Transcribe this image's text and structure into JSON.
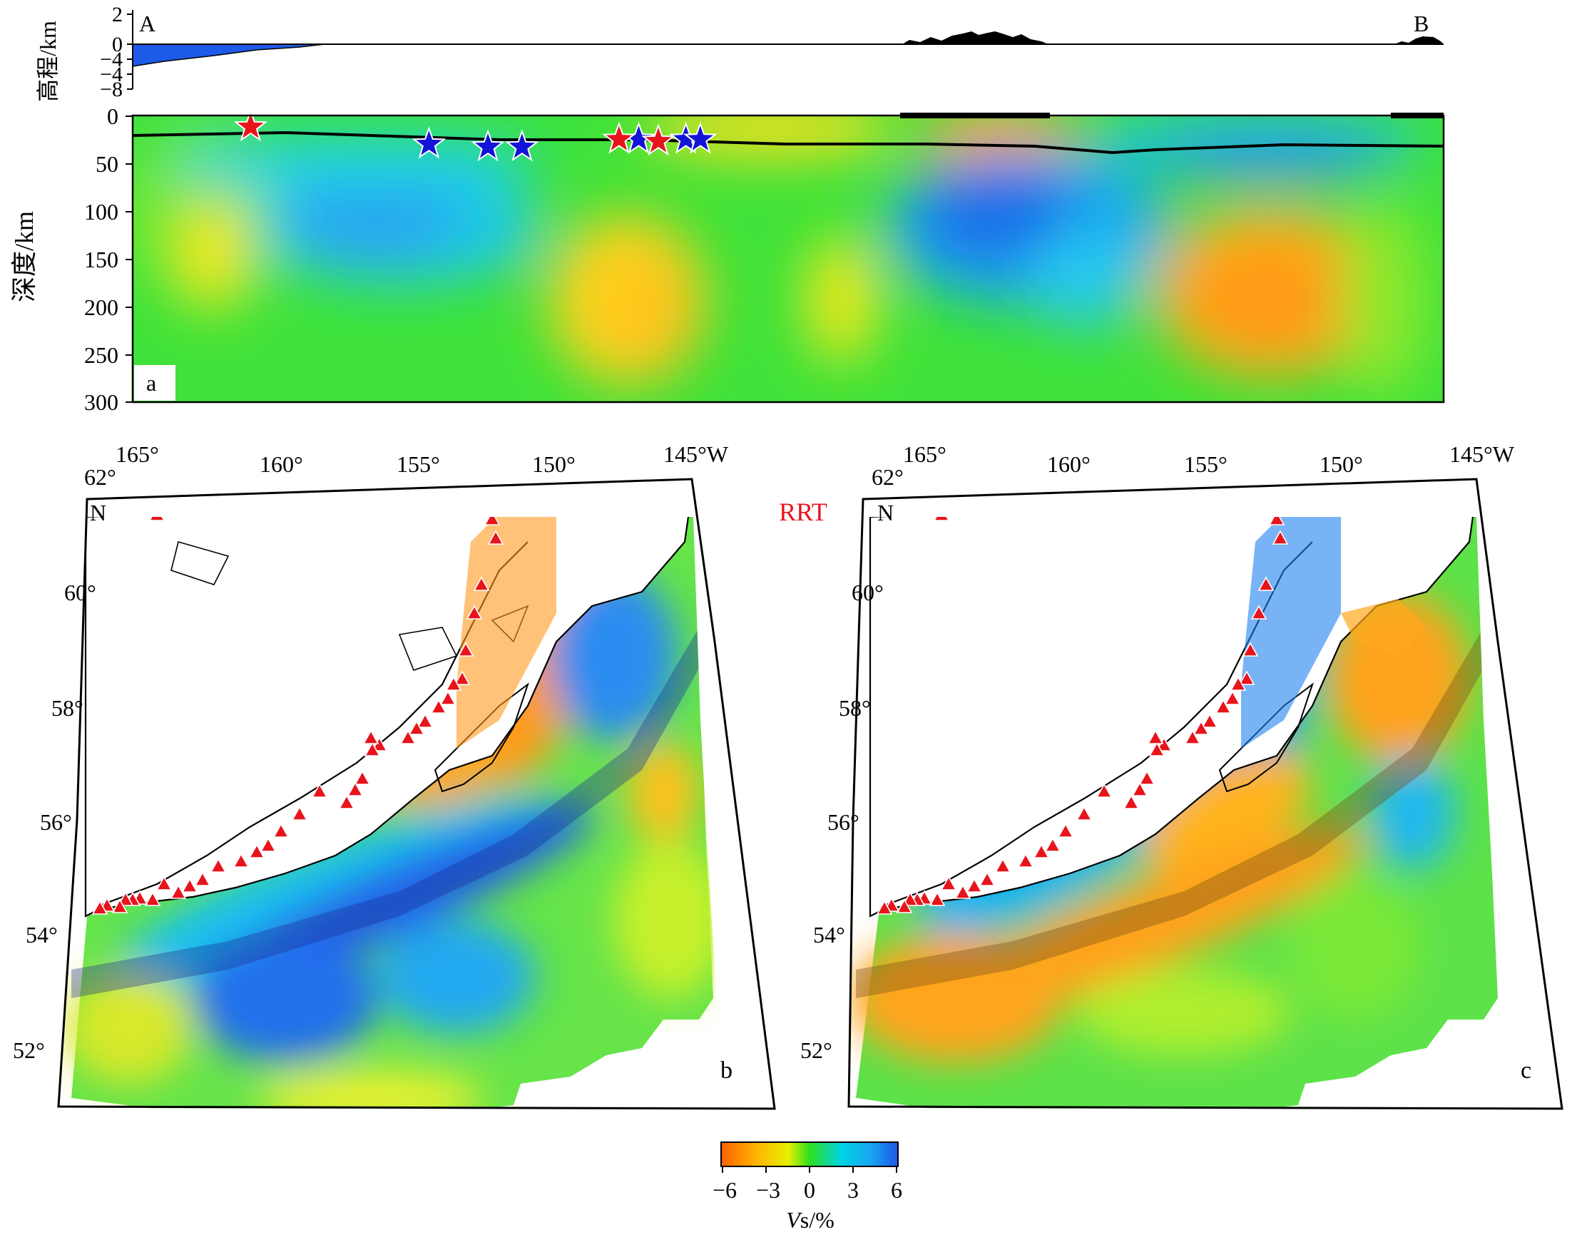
{
  "profile": {
    "elevation": {
      "ylabel": "高程/km",
      "ticks": [
        "2",
        "0",
        "−4",
        "−4",
        "−8"
      ],
      "point_a": "A",
      "point_b": "B"
    },
    "section": {
      "ylabel": "深度/km",
      "ticks": [
        "0",
        "50",
        "100",
        "150",
        "200",
        "250",
        "300"
      ],
      "panel_label": "a",
      "red_stars": [
        [
          0.09,
          12
        ],
        [
          0.371,
          25
        ],
        [
          0.401,
          27
        ]
      ],
      "blue_stars": [
        [
          0.226,
          30
        ],
        [
          0.271,
          33
        ],
        [
          0.297,
          33
        ],
        [
          0.386,
          25
        ],
        [
          0.422,
          25
        ],
        [
          0.433,
          25
        ]
      ]
    }
  },
  "map_b": {
    "panel_label": "b",
    "lon_labels": [
      "165°",
      "160°",
      "155°",
      "150°",
      "145°W"
    ],
    "lat_labels": [
      "62°",
      "60°",
      "58°",
      "56°",
      "54°",
      "52°"
    ],
    "north_label": "N"
  },
  "map_c": {
    "panel_label": "c",
    "lon_labels": [
      "165°",
      "160°",
      "155°",
      "150°",
      "145°W"
    ],
    "lat_labels": [
      "62°",
      "60°",
      "58°",
      "56°",
      "54°",
      "52°"
    ],
    "north_label": "N"
  },
  "map_title": "RRT",
  "colorbar": {
    "ticks": [
      "−6",
      "−3",
      "0",
      "3",
      "6"
    ],
    "label_italic": "V",
    "label_rest": "s/%",
    "colors": [
      "#ff6a00",
      "#ffc800",
      "#e8f000",
      "#28e028",
      "#00d8e0",
      "#1e6cf0"
    ]
  },
  "colors": {
    "volcano": "#e8141c",
    "star_red": "#e8141c",
    "star_blue": "#1414d8",
    "sea_elevation": "#1e5ae8"
  }
}
